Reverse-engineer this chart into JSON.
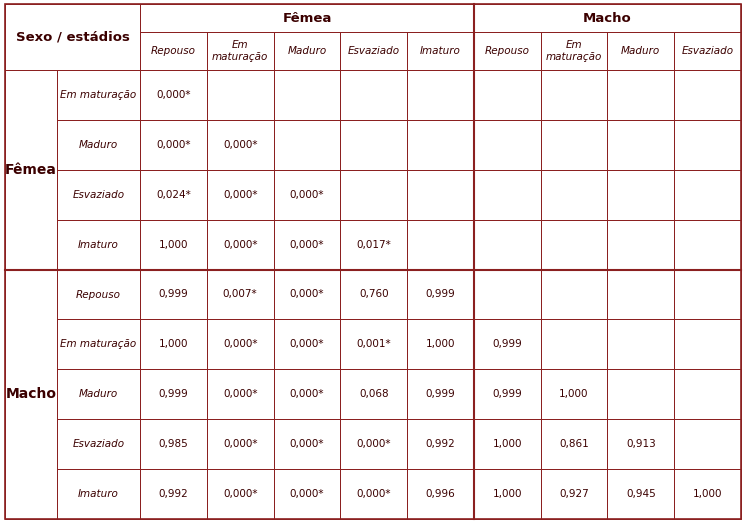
{
  "background_color": "#ffffff",
  "group_headers": [
    "Fêmea",
    "Macho"
  ],
  "sub_headers": [
    "Repouso",
    "Em\nmaturação",
    "Maduro",
    "Esvaziado",
    "Imaturo",
    "Repouso",
    "Em\nmaturação",
    "Maduro",
    "Esvaziado"
  ],
  "row_groups": [
    "Fêmea",
    "Macho"
  ],
  "row_group_spans": [
    4,
    5
  ],
  "row_labels": [
    "Em maturação",
    "Maduro",
    "Esvaziado",
    "Imaturo",
    "Repouso",
    "Em maturação",
    "Maduro",
    "Esvaziado",
    "Imaturo"
  ],
  "cell_data": [
    [
      "0,000*",
      "",
      "",
      "",
      "",
      "",
      "",
      "",
      ""
    ],
    [
      "0,000*",
      "0,000*",
      "",
      "",
      "",
      "",
      "",
      "",
      ""
    ],
    [
      "0,024*",
      "0,000*",
      "0,000*",
      "",
      "",
      "",
      "",
      "",
      ""
    ],
    [
      "1,000",
      "0,000*",
      "0,000*",
      "0,017*",
      "",
      "",
      "",
      "",
      ""
    ],
    [
      "0,999",
      "0,007*",
      "0,000*",
      "0,760",
      "0,999",
      "",
      "",
      "",
      ""
    ],
    [
      "1,000",
      "0,000*",
      "0,000*",
      "0,001*",
      "1,000",
      "0,999",
      "",
      "",
      ""
    ],
    [
      "0,999",
      "0,000*",
      "0,000*",
      "0,068",
      "0,999",
      "0,999",
      "1,000",
      "",
      ""
    ],
    [
      "0,985",
      "0,000*",
      "0,000*",
      "0,000*",
      "0,992",
      "1,000",
      "0,861",
      "0,913",
      ""
    ],
    [
      "0,992",
      "0,000*",
      "0,000*",
      "0,000*",
      "0,996",
      "1,000",
      "0,927",
      "0,945",
      "1,000"
    ]
  ],
  "text_color": "#3B0000",
  "line_color": "#8B2020",
  "sexo_label": "Sexo / estádios",
  "femea_label": "Fêmea",
  "macho_label": "Macho",
  "font_size_subheader": 7.5,
  "font_size_cell": 7.5,
  "font_size_group_header": 9.5,
  "font_size_row_group": 10,
  "font_size_sexo": 9.5
}
